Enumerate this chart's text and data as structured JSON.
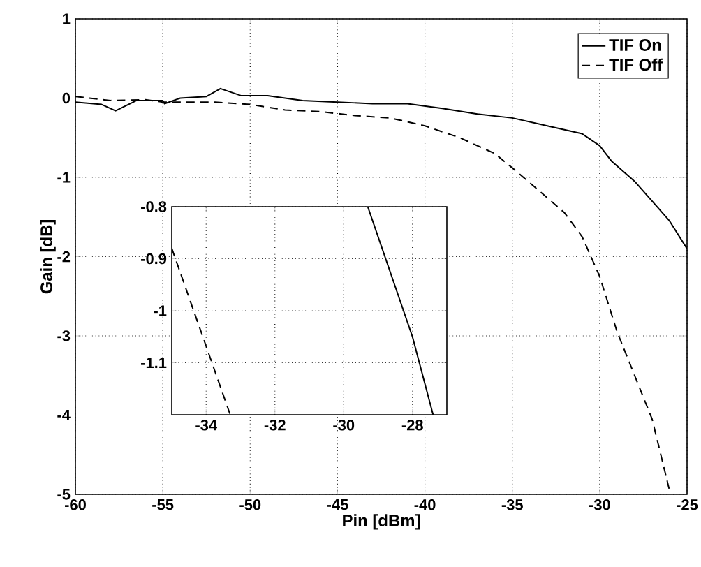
{
  "chart_data": [
    {
      "type": "line",
      "xlabel": "Pin [dBm]",
      "ylabel": "Gain [dB]",
      "xlim": [
        -60,
        -25
      ],
      "ylim": [
        -5,
        1
      ],
      "xticks": [
        -60,
        -55,
        -50,
        -45,
        -40,
        -35,
        -30,
        -25
      ],
      "yticks": [
        -5,
        -4,
        -3,
        -2,
        -1,
        0,
        1
      ],
      "grid": true,
      "legend": "top right",
      "series": [
        {
          "name": "TIF On",
          "color": "#000000",
          "line_style": "solid",
          "x": [
            -60,
            -58.5,
            -57.7,
            -56.5,
            -55,
            -54.9,
            -54,
            -52.5,
            -51.7,
            -50.5,
            -49,
            -47,
            -45,
            -43,
            -41,
            -39,
            -37,
            -35,
            -33,
            -31,
            -30,
            -29.3,
            -28,
            -27.4,
            -26,
            -25
          ],
          "values": [
            -0.05,
            -0.08,
            -0.16,
            -0.03,
            -0.03,
            -0.07,
            0.0,
            0.02,
            0.12,
            0.03,
            0.03,
            -0.03,
            -0.05,
            -0.07,
            -0.07,
            -0.13,
            -0.2,
            -0.25,
            -0.35,
            -0.45,
            -0.6,
            -0.8,
            -1.05,
            -1.2,
            -1.55,
            -1.9
          ]
        },
        {
          "name": "TIF Off",
          "color": "#000000",
          "line_style": "dashed",
          "x": [
            -60,
            -58,
            -56,
            -55,
            -54,
            -52,
            -50,
            -48,
            -46,
            -44,
            -42,
            -40,
            -38,
            -36,
            -35,
            -33.3,
            -32,
            -31,
            -30,
            -29,
            -28,
            -27,
            -26.5,
            -25.95
          ],
          "values": [
            0.02,
            -0.03,
            -0.02,
            -0.05,
            -0.05,
            -0.05,
            -0.08,
            -0.15,
            -0.17,
            -0.22,
            -0.25,
            -0.35,
            -0.5,
            -0.7,
            -0.88,
            -1.2,
            -1.45,
            -1.75,
            -2.25,
            -2.95,
            -3.5,
            -4.05,
            -4.5,
            -5
          ]
        }
      ]
    },
    {
      "type": "line",
      "xlim": [
        -35,
        -27
      ],
      "ylim": [
        -1.2,
        -0.8
      ],
      "xticks": [
        -34,
        -32,
        -30,
        -28
      ],
      "yticks": [
        -0.8,
        -0.9,
        -1,
        -1.1
      ],
      "grid": true,
      "series": [
        {
          "color": "#000000",
          "line_style": "solid",
          "x": [
            -29.3,
            -28,
            -27.4
          ],
          "values": [
            -0.8,
            -1.05,
            -1.2
          ]
        },
        {
          "color": "#000000",
          "line_style": "dashed",
          "x": [
            -35,
            -33.3
          ],
          "values": [
            -0.88,
            -1.2
          ]
        }
      ]
    }
  ]
}
